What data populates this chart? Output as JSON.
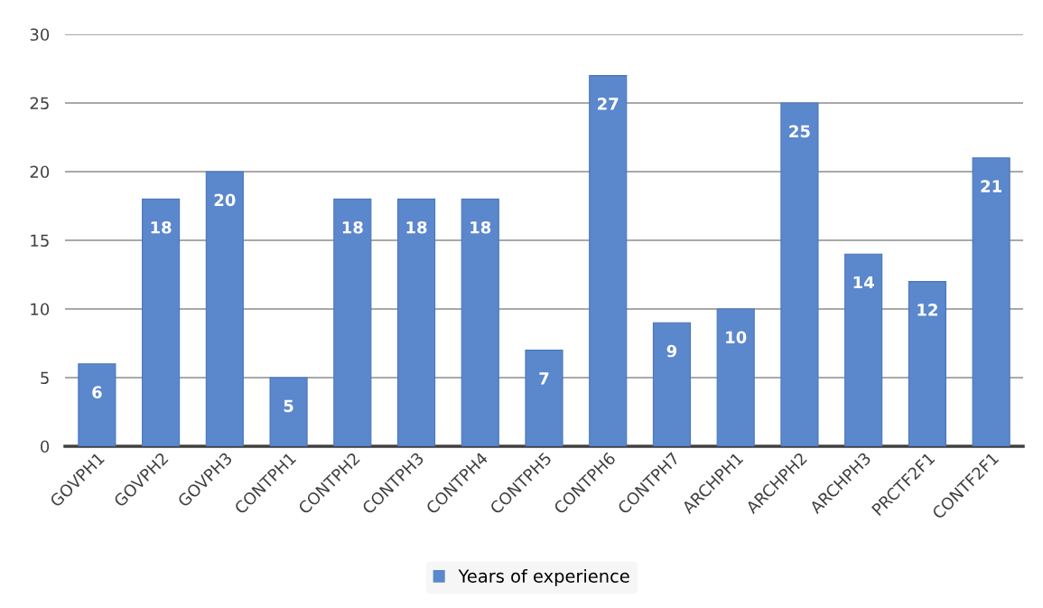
{
  "chart_data": {
    "type": "bar",
    "categories": [
      "GOVPH1",
      "GOVPH2",
      "GOVPH3",
      "CONTPH1",
      "CONTPH2",
      "CONTPH3",
      "CONTPH4",
      "CONTPH5",
      "CONTPH6",
      "CONTPH7",
      "ARCHPH1",
      "ARCHPH2",
      "ARCHPH3",
      "PRCTF2F1",
      "CONTF2F1"
    ],
    "series": [
      {
        "name": "Years of experience",
        "color": "#5b87cc",
        "values": [
          6,
          18,
          20,
          5,
          18,
          18,
          18,
          7,
          27,
          9,
          10,
          25,
          14,
          12,
          21
        ]
      }
    ],
    "ylim": [
      0,
      30
    ],
    "yticks": [
      0,
      5,
      10,
      15,
      20,
      25,
      30
    ],
    "grid": "y",
    "legend": "bottom",
    "data_labels": true
  }
}
